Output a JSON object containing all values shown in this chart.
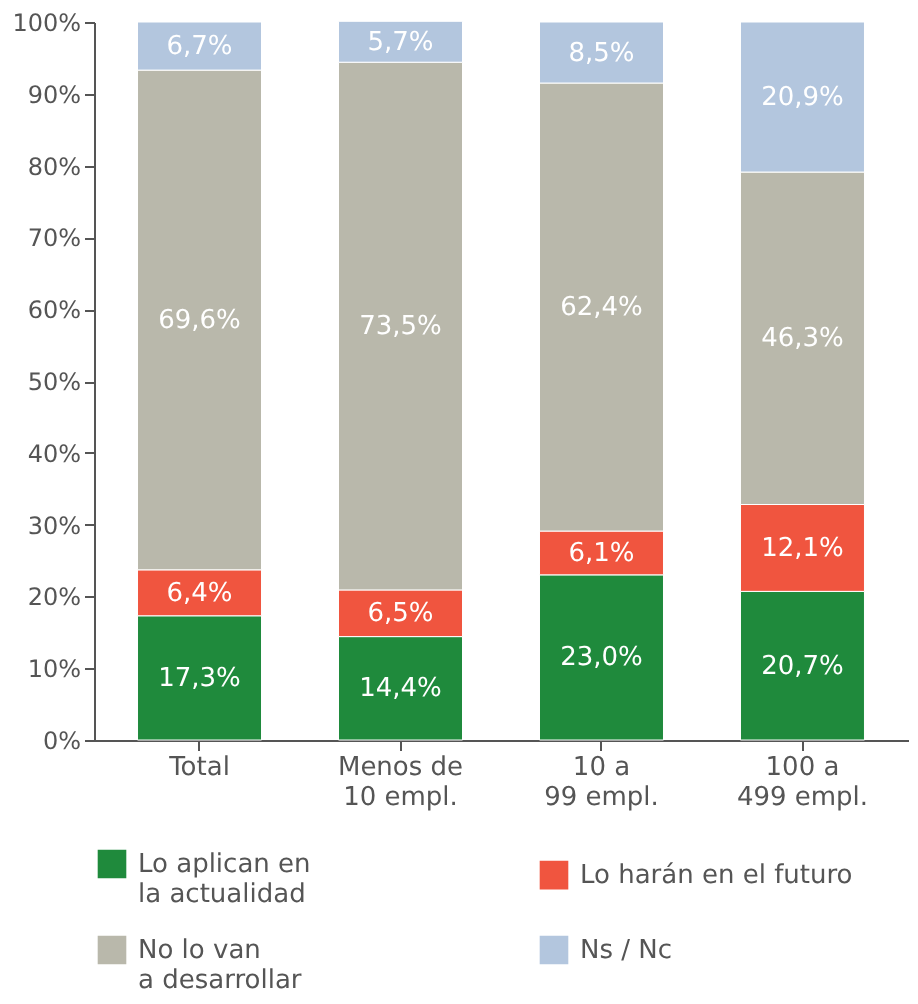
{
  "chart_data": {
    "type": "bar",
    "stacked": true,
    "categories": [
      "Total",
      "Menos de\n10 empl.",
      "10 a\n99 empl.",
      "100 a\n499 empl."
    ],
    "series": [
      {
        "name": "Lo aplican en\nla actualidad",
        "color": "#1f8a3c",
        "values": [
          17.3,
          14.4,
          23.0,
          20.7
        ],
        "value_labels": [
          "17,3%",
          "14,4%",
          "23,0%",
          "20,7%"
        ]
      },
      {
        "name": "Lo harán en el futuro",
        "color": "#f0553f",
        "values": [
          6.4,
          6.5,
          6.1,
          12.1
        ],
        "value_labels": [
          "6,4%",
          "6,5%",
          "6,1%",
          "12,1%"
        ]
      },
      {
        "name": "No lo van\na desarrollar",
        "color": "#b9b8ab",
        "values": [
          69.6,
          73.5,
          62.4,
          46.3
        ],
        "value_labels": [
          "69,6%",
          "73,5%",
          "62,4%",
          "46,3%"
        ]
      },
      {
        "name": "Ns / Nc",
        "color": "#b3c6de",
        "values": [
          6.7,
          5.7,
          8.5,
          20.9
        ],
        "value_labels": [
          "6,7%",
          "5,7%",
          "8,5%",
          "20,9%"
        ]
      }
    ],
    "ylim": [
      0,
      100
    ],
    "yticks": [
      {
        "value": 0,
        "label": "0%"
      },
      {
        "value": 10,
        "label": "10%"
      },
      {
        "value": 20,
        "label": "20%"
      },
      {
        "value": 30,
        "label": "30%"
      },
      {
        "value": 40,
        "label": "40%"
      },
      {
        "value": 50,
        "label": "50%"
      },
      {
        "value": 60,
        "label": "60%"
      },
      {
        "value": 70,
        "label": "70%"
      },
      {
        "value": 80,
        "label": "80%"
      },
      {
        "value": 90,
        "label": "90%"
      },
      {
        "value": 100,
        "label": "100%"
      }
    ],
    "grid": false,
    "legend": "bottom"
  }
}
